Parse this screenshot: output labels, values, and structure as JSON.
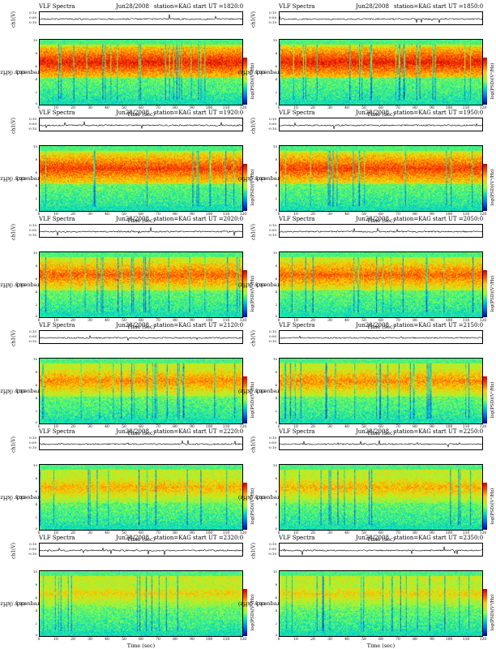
{
  "panel_common": {
    "title_left": "VLF Spectra",
    "station": "station=KAG",
    "ch_label": "ch1(V)",
    "freq_label_line1": "ch1",
    "freq_label_line2": "Frequency (kHz)",
    "cbar_label": "log(PSD)(V²/Hz)",
    "xlabel": "Time (sec)",
    "wave_ticks": [
      "0.10",
      "0.00",
      "-0.10"
    ],
    "freq_ticks": [
      "10",
      "8",
      "6",
      "4",
      "2",
      "0"
    ],
    "time_ticks": [
      "0",
      "10",
      "20",
      "30",
      "40",
      "50",
      "60",
      "70",
      "80",
      "90",
      "100",
      "110",
      "120"
    ]
  },
  "panels": [
    {
      "date": "Jun28/2008",
      "start_ut": "start UT =1820:0"
    },
    {
      "date": "Jun28/2008",
      "start_ut": "start UT =1850:0"
    },
    {
      "date": "Jun28/2008",
      "start_ut": "start UT =1920:0"
    },
    {
      "date": "Jun28/2008",
      "start_ut": "start UT =1950:0"
    },
    {
      "date": "Jun28/2008",
      "start_ut": "start UT =2020:0"
    },
    {
      "date": "Jun28/2008",
      "start_ut": "start UT =2050:0"
    },
    {
      "date": "Jun28/2008",
      "start_ut": "start UT =2120:0"
    },
    {
      "date": "Jun28/2008",
      "start_ut": "start UT =2150:0"
    },
    {
      "date": "Jun28/2008",
      "start_ut": "start UT =2220:0"
    },
    {
      "date": "Jun28/2008",
      "start_ut": "start UT =2250:0"
    },
    {
      "date": "Jun28/2008",
      "start_ut": "start UT =2320:0"
    },
    {
      "date": "Jun28/2008",
      "start_ut": "start UT =2350:0"
    }
  ],
  "chart_data": {
    "type": "heatmap",
    "xlim": [
      0,
      120
    ],
    "ylim_frequency_khz": [
      0,
      10
    ],
    "ylim_waveform_v": [
      -0.1,
      0.1
    ],
    "colormap": [
      "#0000a0",
      "#0070ff",
      "#00e0c0",
      "#90ff40",
      "#ffd000",
      "#ff5000",
      "#d00000"
    ],
    "intense_band_khz": [
      4,
      9
    ]
  }
}
